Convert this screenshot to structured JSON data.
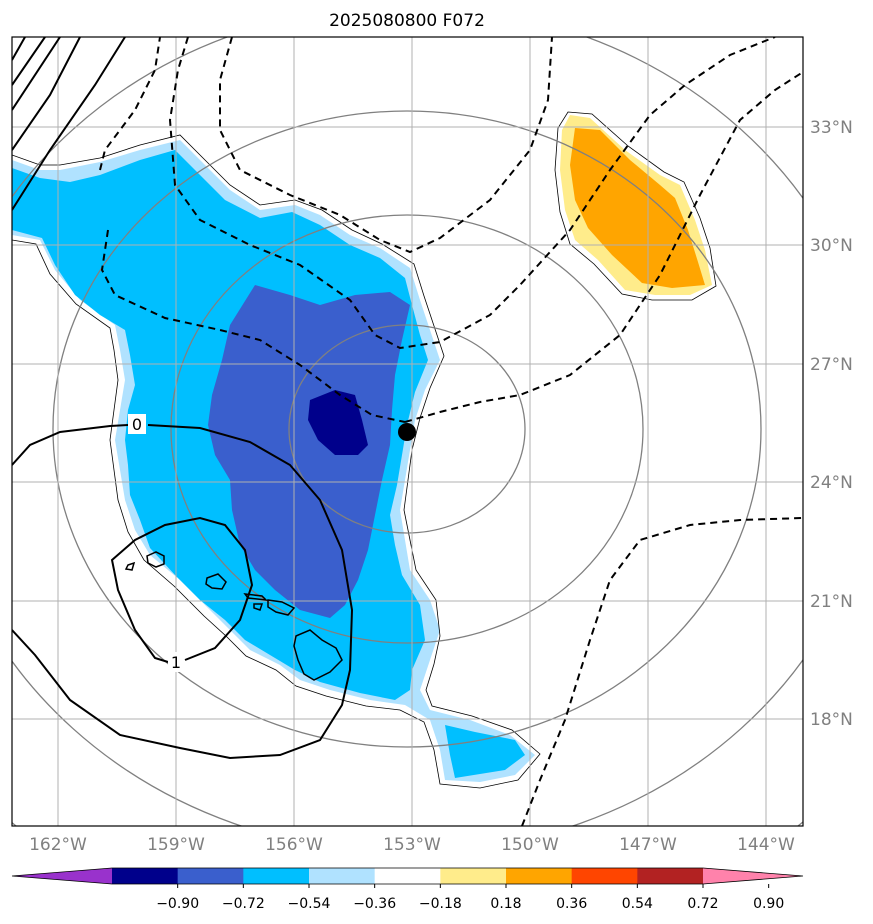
{
  "title": "2025080800 F072",
  "latitude_labels": [
    "33°N",
    "30°N",
    "27°N",
    "24°N",
    "21°N",
    "18°N"
  ],
  "longitude_labels": [
    "162°W",
    "159°W",
    "156°W",
    "153°W",
    "150°W",
    "147°W",
    "144°W"
  ],
  "contour_labels": [
    "0",
    "1"
  ],
  "colorbar": {
    "ticks": [
      "−0.90",
      "−0.72",
      "−0.54",
      "−0.36",
      "−0.18",
      "0.18",
      "0.36",
      "0.54",
      "0.72",
      "0.90"
    ],
    "colors": [
      "#9932cc",
      "#00008b",
      "#3a5fcd",
      "#00bfff",
      "#b0e2ff",
      "#ffffff",
      "#ffec8b",
      "#ffa500",
      "#ff4500",
      "#b22222",
      "#ff82ab"
    ]
  },
  "center_marker": {
    "lon": "153°W",
    "lat": "25°N"
  }
}
